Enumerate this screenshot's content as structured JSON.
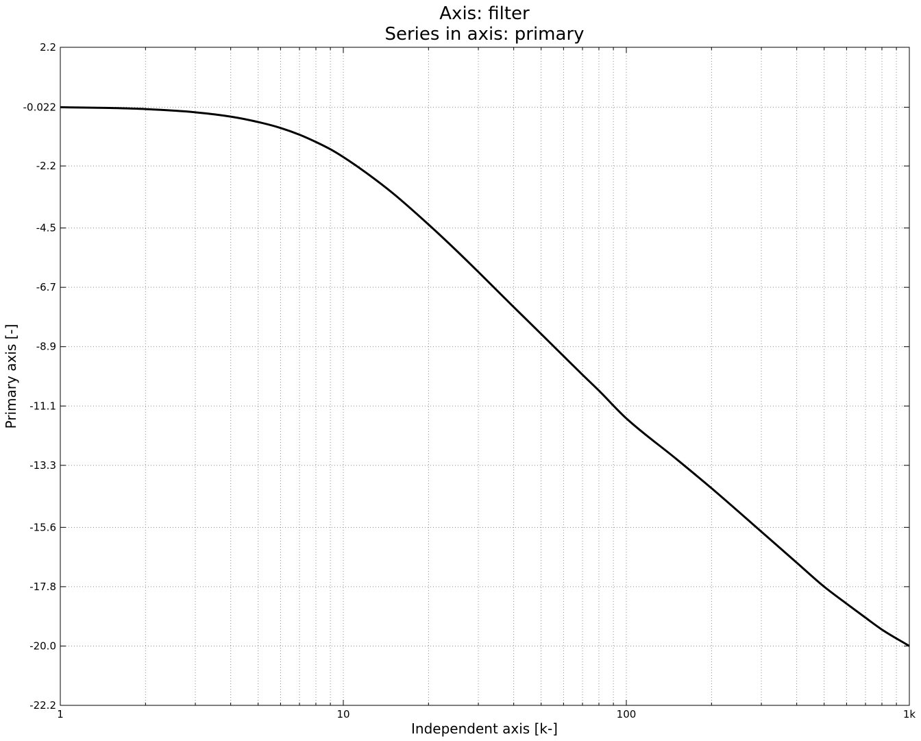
{
  "chart_data": {
    "type": "line",
    "title": "Axis: filter",
    "subtitle": "Series in axis: primary",
    "xlabel": "Independent axis [k-]",
    "ylabel": "Primary axis [-]",
    "x_scale": "log",
    "xlim": [
      1,
      1000
    ],
    "ylim": [
      -22.2,
      2.2
    ],
    "x_ticks": [
      1,
      10,
      100,
      1000
    ],
    "x_tick_labels": [
      "1",
      "10",
      "100",
      "1k"
    ],
    "y_ticks": [
      2.2,
      -0.022,
      -2.2,
      -4.5,
      -6.7,
      -8.9,
      -11.1,
      -13.3,
      -15.6,
      -17.8,
      -20.0,
      -22.2
    ],
    "y_tick_labels": [
      "2.2",
      "-0.022",
      "-2.2",
      "-4.5",
      "-6.7",
      "-8.9",
      "-11.1",
      "-13.3",
      "-15.6",
      "-17.8",
      "-20.0",
      "-22.2"
    ],
    "grid": true,
    "series": [
      {
        "color": "#000000",
        "x": [
          1,
          1.5,
          2,
          3,
          4,
          5,
          6,
          7,
          8,
          9,
          10,
          12,
          15,
          20,
          25,
          30,
          40,
          50,
          60,
          70,
          80,
          100,
          150,
          200,
          300,
          400,
          500,
          600,
          700,
          800,
          1000
        ],
        "y": [
          -0.022,
          -0.05,
          -0.09,
          -0.21,
          -0.37,
          -0.57,
          -0.79,
          -1.04,
          -1.31,
          -1.58,
          -1.87,
          -2.44,
          -3.22,
          -4.37,
          -5.32,
          -6.13,
          -7.43,
          -8.43,
          -9.25,
          -9.94,
          -10.53,
          -11.56,
          -13.06,
          -14.15,
          -15.76,
          -16.91,
          -17.8,
          -18.43,
          -18.95,
          -19.39,
          -20.0
        ]
      }
    ]
  }
}
